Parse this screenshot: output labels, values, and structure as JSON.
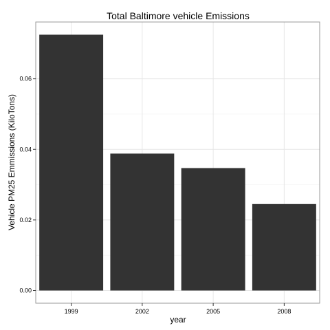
{
  "chart_data": {
    "type": "bar",
    "title": "Total Baltimore vehicle Emissions",
    "xlabel": "year",
    "ylabel": "Vehicle PM25 Emmissions (KiloTons)",
    "categories": [
      "1999",
      "2002",
      "2005",
      "2008"
    ],
    "values": [
      0.0725,
      0.0388,
      0.0347,
      0.0245
    ],
    "ylim": [
      -0.0036,
      0.0761
    ],
    "y_ticks": [
      0.0,
      0.02,
      0.04,
      0.06
    ],
    "y_tick_labels": [
      "0.00",
      "0.02",
      "0.04",
      "0.06"
    ],
    "grid": true,
    "bar_color": "#333333",
    "grid_color": "#e6e6e6",
    "panel_border_color": "#999999"
  }
}
